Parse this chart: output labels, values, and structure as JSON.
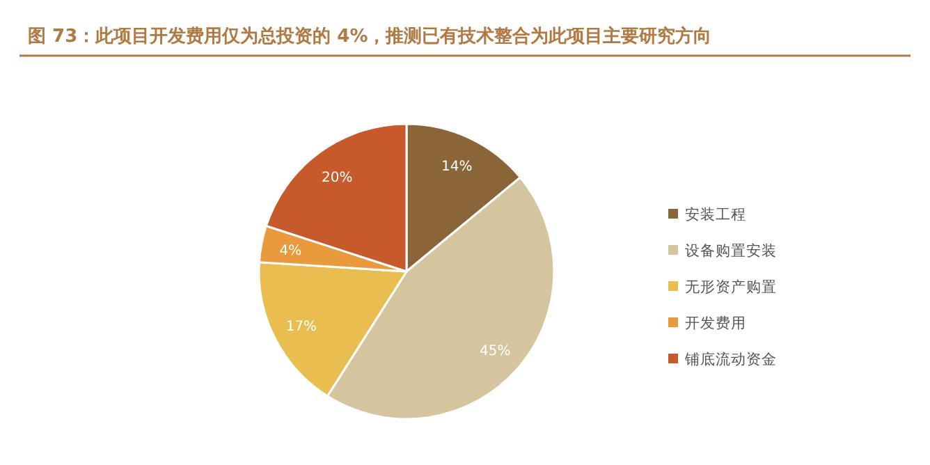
{
  "chart_data": {
    "type": "pie",
    "title": "图 73：此项目开发费用仅为总投资的 4%，推测已有技术整合为此项目主要研究方向",
    "categories": [
      "安装工程",
      "设备购置安装",
      "无形资产购置",
      "开发费用",
      "铺底流动资金"
    ],
    "values": [
      14,
      45,
      17,
      4,
      20
    ],
    "value_labels": [
      "14%",
      "45%",
      "17%",
      "4%",
      "20%"
    ],
    "colors": [
      "#8a6538",
      "#d5c59e",
      "#e9bd4f",
      "#e99a3c",
      "#c65a2b"
    ],
    "legend": "right"
  }
}
